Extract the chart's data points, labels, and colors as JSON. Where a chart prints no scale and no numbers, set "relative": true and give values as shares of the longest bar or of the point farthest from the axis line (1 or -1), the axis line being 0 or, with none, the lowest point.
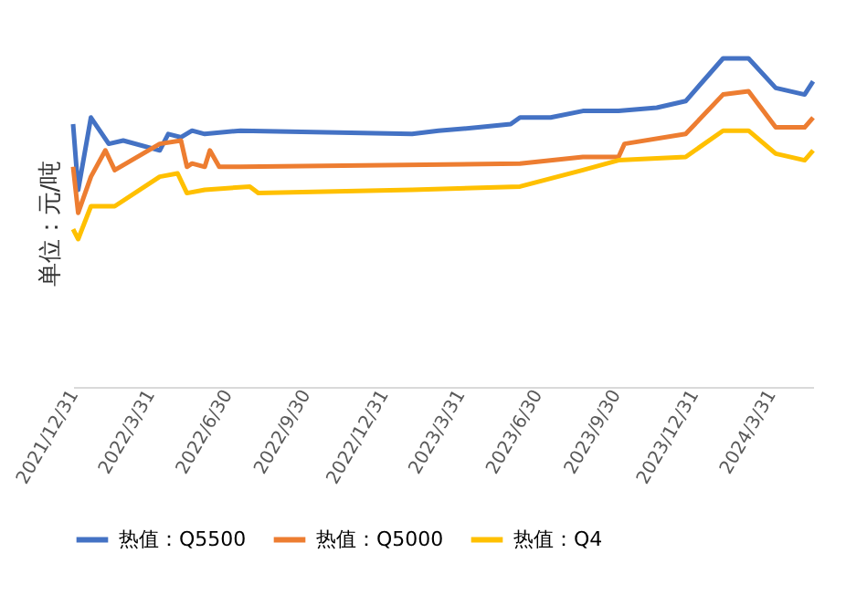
{
  "chart_data": {
    "type": "line",
    "ylabel": "单位：元/吨",
    "relative": true,
    "legend": "bottom",
    "grid": false,
    "marker": "none",
    "line_style": "solid",
    "xlim": [
      "2021-12-31",
      "2024-05-20"
    ],
    "xticks": [
      {
        "value": "2021-12-31",
        "label": "2021/12/31"
      },
      {
        "value": "2022-03-31",
        "label": "2022/3/31"
      },
      {
        "value": "2022-06-30",
        "label": "2022/6/30"
      },
      {
        "value": "2022-09-30",
        "label": "2022/9/30"
      },
      {
        "value": "2022-12-31",
        "label": "2022/12/31"
      },
      {
        "value": "2023-03-31",
        "label": "2023/3/31"
      },
      {
        "value": "2023-06-30",
        "label": "2023/6/30"
      },
      {
        "value": "2023-09-30",
        "label": "2023/9/30"
      },
      {
        "value": "2023-12-31",
        "label": "2023/12/31"
      },
      {
        "value": "2024-03-31",
        "label": "2024/3/31"
      }
    ],
    "series": [
      {
        "name": "热值：Q5500",
        "color": "#4472c4",
        "x": [
          "2021-12-31",
          "2022-01-06",
          "2022-01-21",
          "2022-02-11",
          "2022-02-28",
          "2022-04-12",
          "2022-04-22",
          "2022-05-07",
          "2022-05-20",
          "2022-06-04",
          "2022-07-16",
          "2023-02-03",
          "2023-03-06",
          "2023-04-22",
          "2023-05-30",
          "2023-06-10",
          "2023-07-16",
          "2023-08-23",
          "2023-10-04",
          "2023-11-18",
          "2023-12-22",
          "2024-02-04",
          "2024-03-05",
          "2024-04-06",
          "2024-05-10",
          "2024-05-20"
        ],
        "values": [
          0.8,
          0.6,
          0.82,
          0.74,
          0.75,
          0.72,
          0.77,
          0.76,
          0.78,
          0.77,
          0.78,
          0.77,
          0.78,
          0.79,
          0.8,
          0.82,
          0.82,
          0.84,
          0.84,
          0.85,
          0.87,
          1,
          1,
          0.91,
          0.89,
          0.93
        ]
      },
      {
        "name": "热值：Q5000",
        "color": "#ed7d31",
        "x": [
          "2021-12-31",
          "2022-01-06",
          "2022-01-21",
          "2022-02-07",
          "2022-02-18",
          "2022-04-12",
          "2022-05-07",
          "2022-05-14",
          "2022-05-20",
          "2022-06-04",
          "2022-06-10",
          "2022-06-21",
          "2022-07-16",
          "2023-06-10",
          "2023-08-23",
          "2023-10-04",
          "2023-10-11",
          "2023-12-22",
          "2024-02-04",
          "2024-03-05",
          "2024-04-06",
          "2024-05-10",
          "2024-05-20"
        ],
        "values": [
          0.67,
          0.53,
          0.64,
          0.72,
          0.66,
          0.74,
          0.75,
          0.67,
          0.68,
          0.67,
          0.72,
          0.67,
          0.67,
          0.68,
          0.7,
          0.7,
          0.74,
          0.77,
          0.89,
          0.9,
          0.79,
          0.79,
          0.82
        ]
      },
      {
        "name": "热值：Q4",
        "color": "#ffc000",
        "x": [
          "2021-12-31",
          "2022-01-06",
          "2022-01-21",
          "2022-02-18",
          "2022-04-12",
          "2022-05-03",
          "2022-05-14",
          "2022-06-04",
          "2022-07-27",
          "2022-08-06",
          "2023-02-03",
          "2023-06-10",
          "2023-08-23",
          "2023-10-04",
          "2023-12-22",
          "2024-02-04",
          "2024-03-05",
          "2024-04-06",
          "2024-05-10",
          "2024-05-20"
        ],
        "values": [
          0.48,
          0.45,
          0.55,
          0.55,
          0.64,
          0.65,
          0.59,
          0.6,
          0.61,
          0.59,
          0.6,
          0.61,
          0.66,
          0.69,
          0.7,
          0.78,
          0.78,
          0.71,
          0.69,
          0.72
        ]
      }
    ]
  }
}
